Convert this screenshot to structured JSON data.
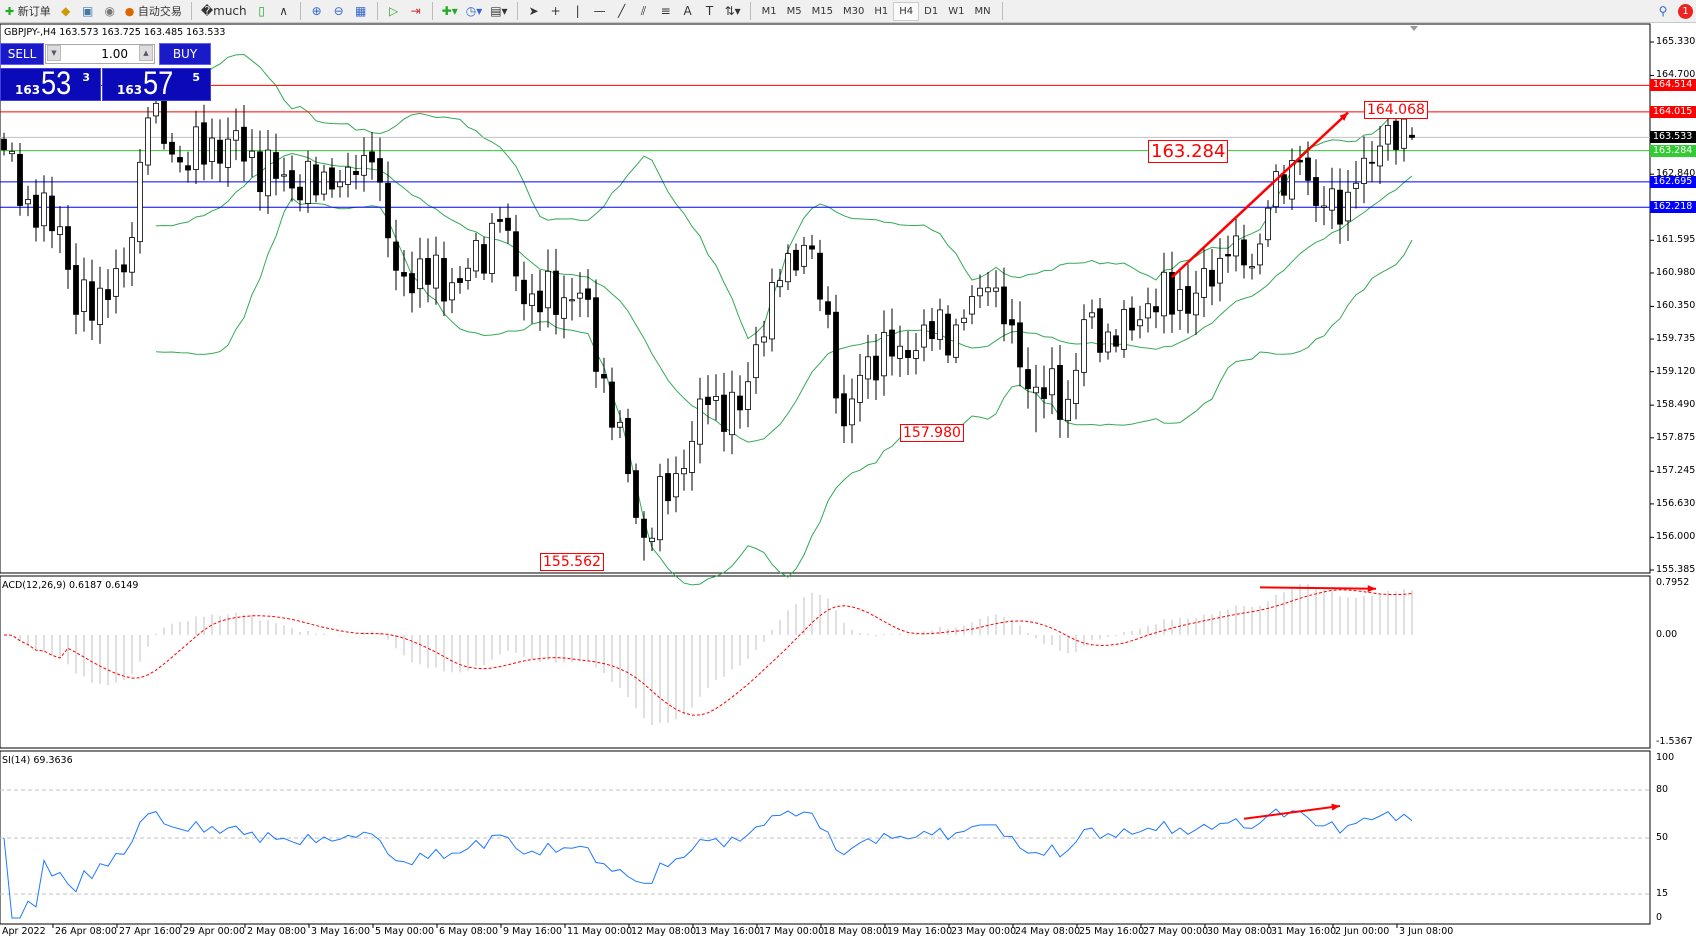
{
  "toolbar": {
    "new_order": "新订单",
    "auto_trade": "自动交易",
    "icons": [
      "new-order-icon",
      "history-icon",
      "account-icon",
      "signal-icon",
      "auto-trade-icon",
      "bar-chart-icon",
      "candle-chart-icon",
      "line-chart-icon",
      "zoom-in-icon",
      "zoom-out-icon",
      "tile-icon",
      "auto-scroll-icon",
      "chart-shift-icon",
      "indicators-icon",
      "period-icon",
      "templates-icon",
      "cursor-icon",
      "crosshair-icon",
      "vertical-line-icon",
      "horizontal-line-icon",
      "trendline-icon",
      "channel-icon",
      "fibonacci-icon",
      "text-icon",
      "text-label-icon",
      "arrows-icon"
    ],
    "timeframes": [
      "M1",
      "M5",
      "M15",
      "M30",
      "H1",
      "H4",
      "D1",
      "W1",
      "MN"
    ],
    "active_timeframe": "H4",
    "notification_count": "1"
  },
  "symbol_line": "GBPJPY-,H4 163.573 163.725 163.485 163.533",
  "trade_panel": {
    "sell": "SELL",
    "buy": "BUY",
    "lot": "1.00",
    "sell_big": "163",
    "sell_pips": "53",
    "sell_point": "3",
    "buy_big": "163",
    "buy_pips": "57",
    "buy_point": "5"
  },
  "macd_label": "ACD(12,26,9) 0.6187 0.6149",
  "rsi_label": "SI(14) 69.3636",
  "chart_data": {
    "type": "candlestick",
    "symbol": "GBPJPY-",
    "timeframe": "H4",
    "last_bar": {
      "open": 163.573,
      "high": 163.725,
      "low": 163.485,
      "close": 163.533
    },
    "ylim": [
      155.385,
      165.33
    ],
    "price_ticks": [
      "165.330",
      "164.700",
      "162.840",
      "161.595",
      "160.980",
      "160.350",
      "159.735",
      "159.120",
      "158.490",
      "157.875",
      "157.245",
      "156.630",
      "156.000",
      "155.385"
    ],
    "close_path": [
      [
        1,
        163.27
      ],
      [
        2,
        162.25
      ],
      [
        7,
        161.85
      ],
      [
        9,
        160.2
      ],
      [
        15,
        161.0
      ],
      [
        18,
        163.9
      ],
      [
        22,
        163.07
      ],
      [
        28,
        163.5
      ],
      [
        34,
        162.76
      ],
      [
        41,
        162.56
      ],
      [
        46,
        163.07
      ],
      [
        49,
        161.03
      ],
      [
        57,
        160.8
      ],
      [
        62,
        161.95
      ],
      [
        65,
        160.4
      ],
      [
        72,
        160.6
      ],
      [
        75,
        159.0
      ],
      [
        78,
        157.2
      ],
      [
        80,
        156.0
      ],
      [
        84,
        157.2
      ],
      [
        88,
        158.5
      ],
      [
        92,
        158.4
      ],
      [
        96,
        160.8
      ],
      [
        100,
        161.5
      ],
      [
        103,
        160.2
      ],
      [
        105,
        158.1
      ],
      [
        108,
        159.4
      ],
      [
        112,
        159.6
      ],
      [
        119,
        160.0
      ],
      [
        123,
        160.7
      ],
      [
        126,
        160.0
      ],
      [
        128,
        158.8
      ],
      [
        133,
        158.6
      ],
      [
        135,
        160.1
      ],
      [
        139,
        159.6
      ],
      [
        143,
        160.4
      ],
      [
        149,
        160.6
      ],
      [
        153,
        161.3
      ],
      [
        156,
        161.1
      ],
      [
        158,
        162.2
      ],
      [
        162,
        163.07
      ],
      [
        164,
        162.25
      ],
      [
        168,
        162.5
      ],
      [
        172,
        163.37
      ],
      [
        176,
        163.533
      ]
    ],
    "horizontal_lines": [
      {
        "price": "164.514",
        "color": "#ff0000"
      },
      {
        "price": "164.015",
        "color": "#ff0000"
      },
      {
        "price": "163.533",
        "color": "#000000",
        "line": "#c0c0c0"
      },
      {
        "price": "163.284",
        "color": "#33cc33"
      },
      {
        "price": "162.695",
        "color": "#0000ff"
      },
      {
        "price": "162.218",
        "color": "#0000ff"
      }
    ],
    "price_labels": [
      {
        "text": "164.068",
        "bar": 170,
        "price": 164.068
      },
      {
        "text": "163.284",
        "bar": 143,
        "price": 163.284,
        "large": true
      },
      {
        "text": "157.980",
        "bar": 112,
        "price": 157.98
      },
      {
        "text": "155.562",
        "bar": 67,
        "price": 155.562
      }
    ],
    "trend_arrow": {
      "from": [
        146,
        160.9
      ],
      "to": [
        168,
        164.0
      ],
      "color": "#ff0000"
    },
    "bollinger": {
      "period": 20,
      "deviation": 2,
      "color": "#33aa55"
    },
    "macd": {
      "params": "12,26,9",
      "ylim": [
        -1.5367,
        0.7952
      ],
      "ticks": [
        "0.7952",
        "0.00",
        "-1.5367"
      ],
      "signal_color": "#ff0000",
      "hist_color": "#c0c0c0",
      "arrow": {
        "from": [
          157,
          0.7
        ],
        "to": [
          170,
          0.68
        ]
      }
    },
    "rsi": {
      "period": 14,
      "ticks": [
        "100",
        "80",
        "50",
        "15",
        "0"
      ],
      "levels": [
        80,
        50,
        15
      ],
      "color": "#1e78ff",
      "arrow": {
        "from": [
          155,
          62
        ],
        "to": [
          167,
          70
        ]
      }
    },
    "time_labels": [
      "Apr 2022",
      "26 Apr 08:00",
      "27 Apr 16:00",
      "29 Apr 00:00",
      "2 May 08:00",
      "3 May 16:00",
      "5 May 00:00",
      "6 May 08:00",
      "9 May 16:00",
      "11 May 00:00",
      "12 May 08:00",
      "13 May 16:00",
      "17 May 00:00",
      "18 May 08:00",
      "19 May 16:00",
      "23 May 00:00",
      "24 May 08:00",
      "25 May 16:00",
      "27 May 00:00",
      "30 May 08:00",
      "31 May 16:00",
      "2 Jun 00:00",
      "3 Jun 08:00"
    ]
  }
}
